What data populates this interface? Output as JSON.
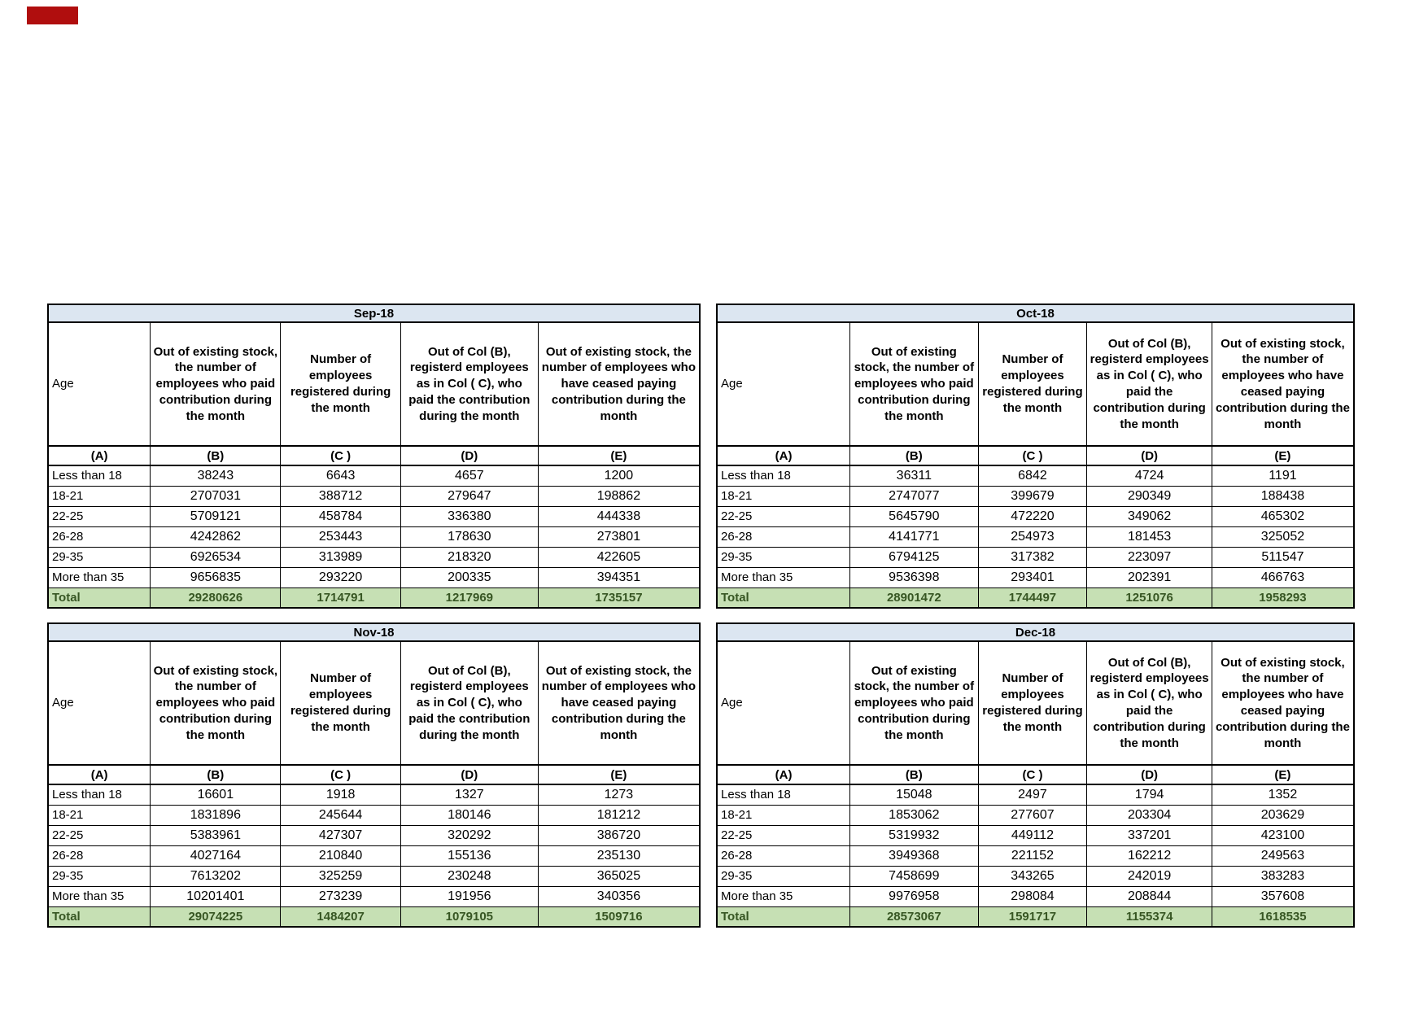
{
  "colors": {
    "page_bg": "#ffffff",
    "title_bg": "#dce6f1",
    "total_bg": "#c6e0b4",
    "total_text": "#375623",
    "border": "#000000",
    "corner_mark": "#b00e0e"
  },
  "table_template": {
    "age_header": "Age",
    "col_headers": {
      "b": "Out of existing stock, the number of employees who paid contribution during the month",
      "c": "Number of employees registered during the month",
      "d": "Out of Col (B), registerd employees as in Col ( C), who paid the contribution during the month",
      "e": "Out of existing stock, the number of employees  who have ceased paying contribution during the month"
    },
    "col_labels": [
      "(A)",
      "(B)",
      "(C )",
      "(D)",
      "(E)"
    ],
    "age_groups": [
      "Less than 18",
      "18-21",
      "22-25",
      "26-28",
      "29-35",
      "More than 35"
    ],
    "total_label": "Total"
  },
  "tables": [
    {
      "month": "Sep-18",
      "rows": [
        [
          "38243",
          "6643",
          "4657",
          "1200"
        ],
        [
          "2707031",
          "388712",
          "279647",
          "198862"
        ],
        [
          "5709121",
          "458784",
          "336380",
          "444338"
        ],
        [
          "4242862",
          "253443",
          "178630",
          "273801"
        ],
        [
          "6926534",
          "313989",
          "218320",
          "422605"
        ],
        [
          "9656835",
          "293220",
          "200335",
          "394351"
        ]
      ],
      "totals": [
        "29280626",
        "1714791",
        "1217969",
        "1735157"
      ]
    },
    {
      "month": "Oct-18",
      "rows": [
        [
          "36311",
          "6842",
          "4724",
          "1191"
        ],
        [
          "2747077",
          "399679",
          "290349",
          "188438"
        ],
        [
          "5645790",
          "472220",
          "349062",
          "465302"
        ],
        [
          "4141771",
          "254973",
          "181453",
          "325052"
        ],
        [
          "6794125",
          "317382",
          "223097",
          "511547"
        ],
        [
          "9536398",
          "293401",
          "202391",
          "466763"
        ]
      ],
      "totals": [
        "28901472",
        "1744497",
        "1251076",
        "1958293"
      ]
    },
    {
      "month": "Nov-18",
      "rows": [
        [
          "16601",
          "1918",
          "1327",
          "1273"
        ],
        [
          "1831896",
          "245644",
          "180146",
          "181212"
        ],
        [
          "5383961",
          "427307",
          "320292",
          "386720"
        ],
        [
          "4027164",
          "210840",
          "155136",
          "235130"
        ],
        [
          "7613202",
          "325259",
          "230248",
          "365025"
        ],
        [
          "10201401",
          "273239",
          "191956",
          "340356"
        ]
      ],
      "totals": [
        "29074225",
        "1484207",
        "1079105",
        "1509716"
      ]
    },
    {
      "month": "Dec-18",
      "rows": [
        [
          "15048",
          "2497",
          "1794",
          "1352"
        ],
        [
          "1853062",
          "277607",
          "203304",
          "203629"
        ],
        [
          "5319932",
          "449112",
          "337201",
          "423100"
        ],
        [
          "3949368",
          "221152",
          "162212",
          "249563"
        ],
        [
          "7458699",
          "343265",
          "242019",
          "383283"
        ],
        [
          "9976958",
          "298084",
          "208844",
          "357608"
        ]
      ],
      "totals": [
        "28573067",
        "1591717",
        "1155374",
        "1618535"
      ]
    }
  ]
}
